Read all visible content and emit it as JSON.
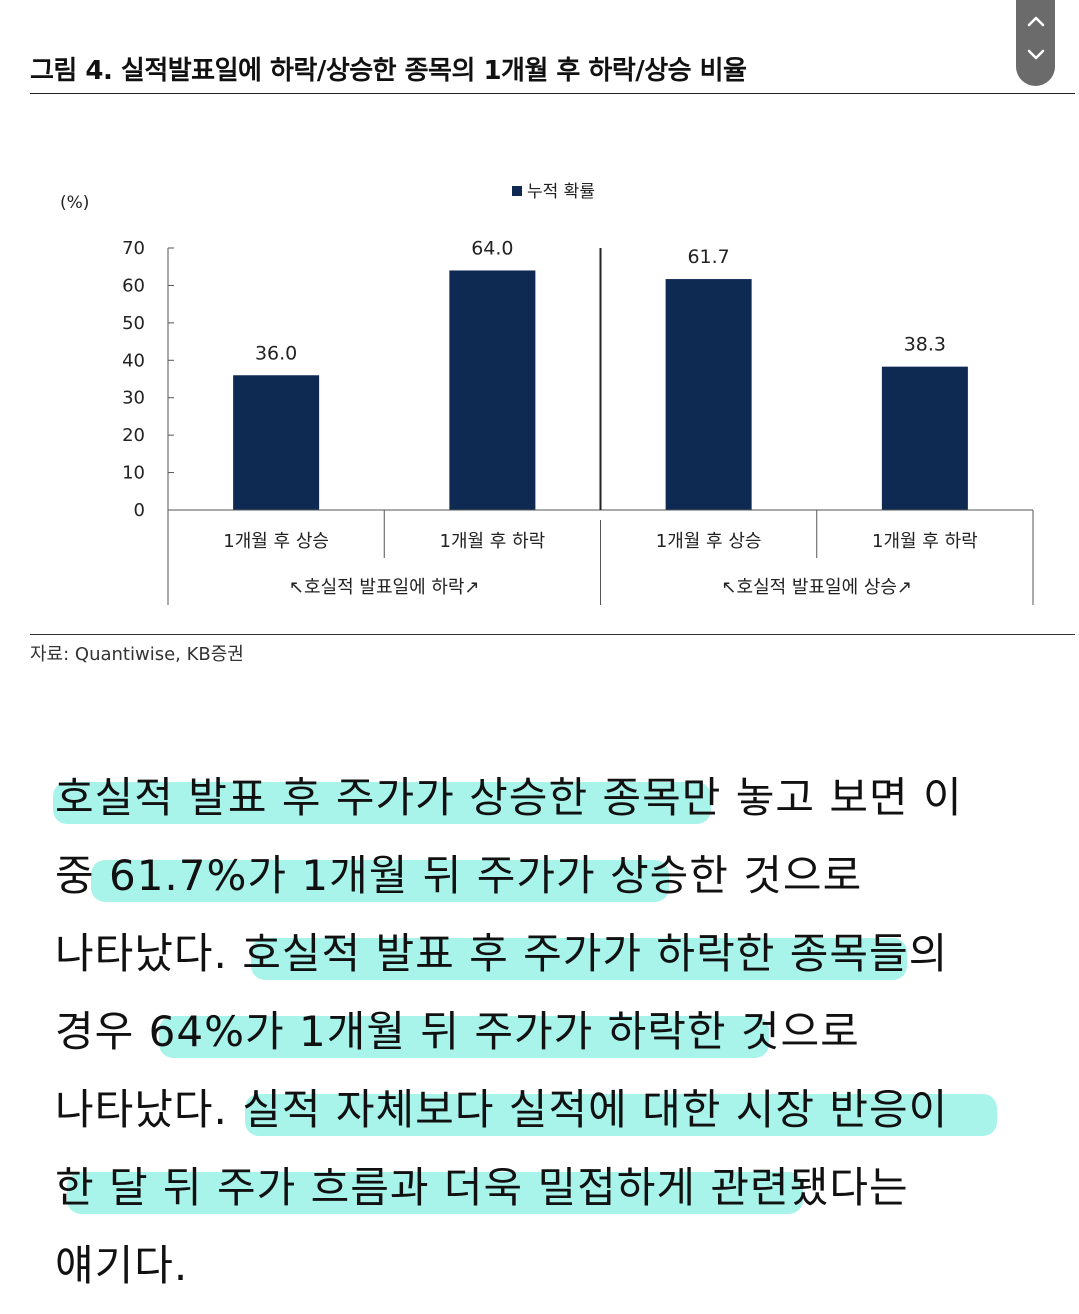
{
  "header": {
    "figure_title": "그림 4. 실적발표일에 하락/상승한 종목의 1개월 후 하락/상승 비율"
  },
  "scroll_control": {
    "up_icon": "chevron-up-icon",
    "down_icon": "chevron-down-icon"
  },
  "chart_data": {
    "type": "bar",
    "y_unit": "(%)",
    "legend": "누적 확률",
    "legend_position": "top-center",
    "ylim": [
      0,
      70
    ],
    "yticks": [
      "0",
      "10",
      "20",
      "30",
      "40",
      "50",
      "60",
      "70"
    ],
    "bar_color": "#0f2a52",
    "categories": [
      "1개월 후 상승",
      "1개월 후 하락",
      "1개월 후 상승",
      "1개월 후 하락"
    ],
    "values": [
      36.0,
      64.0,
      61.7,
      38.3
    ],
    "value_labels": [
      "36.0",
      "64.0",
      "61.7",
      "38.3"
    ],
    "groups": [
      {
        "label": "↖호실적 발표일에 하락↗"
      },
      {
        "label": "↖호실적 발표일에 상승↗"
      }
    ],
    "grid": false
  },
  "source": "자료: Quantiwise, KB증권",
  "article": {
    "lines": [
      "호실적 발표 후 주가가 상승한 종목만 놓고 보면 이",
      "중 61.7%가 1개월 뒤 주가가 상승한 것으로",
      "나타났다. 호실적 발표 후 주가가 하락한 종목들의",
      "경우 64%가 1개월 뒤 주가가 하락한 것으로",
      "나타났다. 실적 자체보다 실적에 대한 시장 반응이",
      "한 달 뒤 주가 흐름과 더욱 밀접하게 관련됐다는",
      "얘기다."
    ],
    "highlight_color": "#6eecde"
  }
}
